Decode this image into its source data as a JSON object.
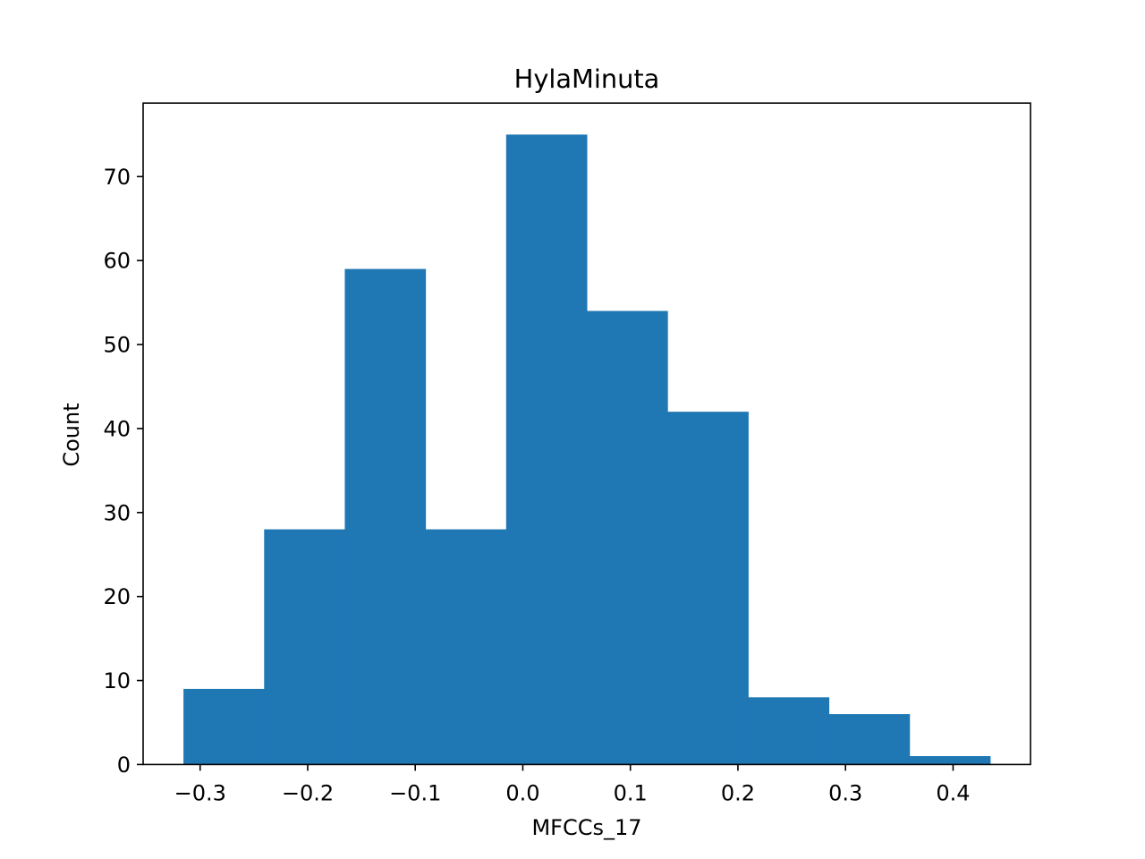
{
  "chart_data": {
    "type": "bar",
    "title": "HylaMinuta",
    "xlabel": "MFCCs_17",
    "ylabel": "Count",
    "bin_edges": [
      -0.3155,
      -0.2405,
      -0.1655,
      -0.0905,
      -0.0155,
      0.0595,
      0.1345,
      0.2095,
      0.2845,
      0.3595,
      0.4345
    ],
    "counts": [
      9,
      28,
      59,
      28,
      75,
      54,
      42,
      8,
      6,
      1
    ],
    "xlim": [
      -0.353,
      0.472
    ],
    "ylim": [
      0,
      78.75
    ],
    "xticks": [
      -0.3,
      -0.2,
      -0.1,
      0.0,
      0.1,
      0.2,
      0.3,
      0.4
    ],
    "xtick_labels": [
      "−0.3",
      "−0.2",
      "−0.1",
      "0.0",
      "0.1",
      "0.2",
      "0.3",
      "0.4"
    ],
    "yticks": [
      0,
      10,
      20,
      30,
      40,
      50,
      60,
      70
    ],
    "ytick_labels": [
      "0",
      "10",
      "20",
      "30",
      "40",
      "50",
      "60",
      "70"
    ],
    "bar_color": "#1f77b4",
    "grid": false,
    "legend": "none"
  }
}
